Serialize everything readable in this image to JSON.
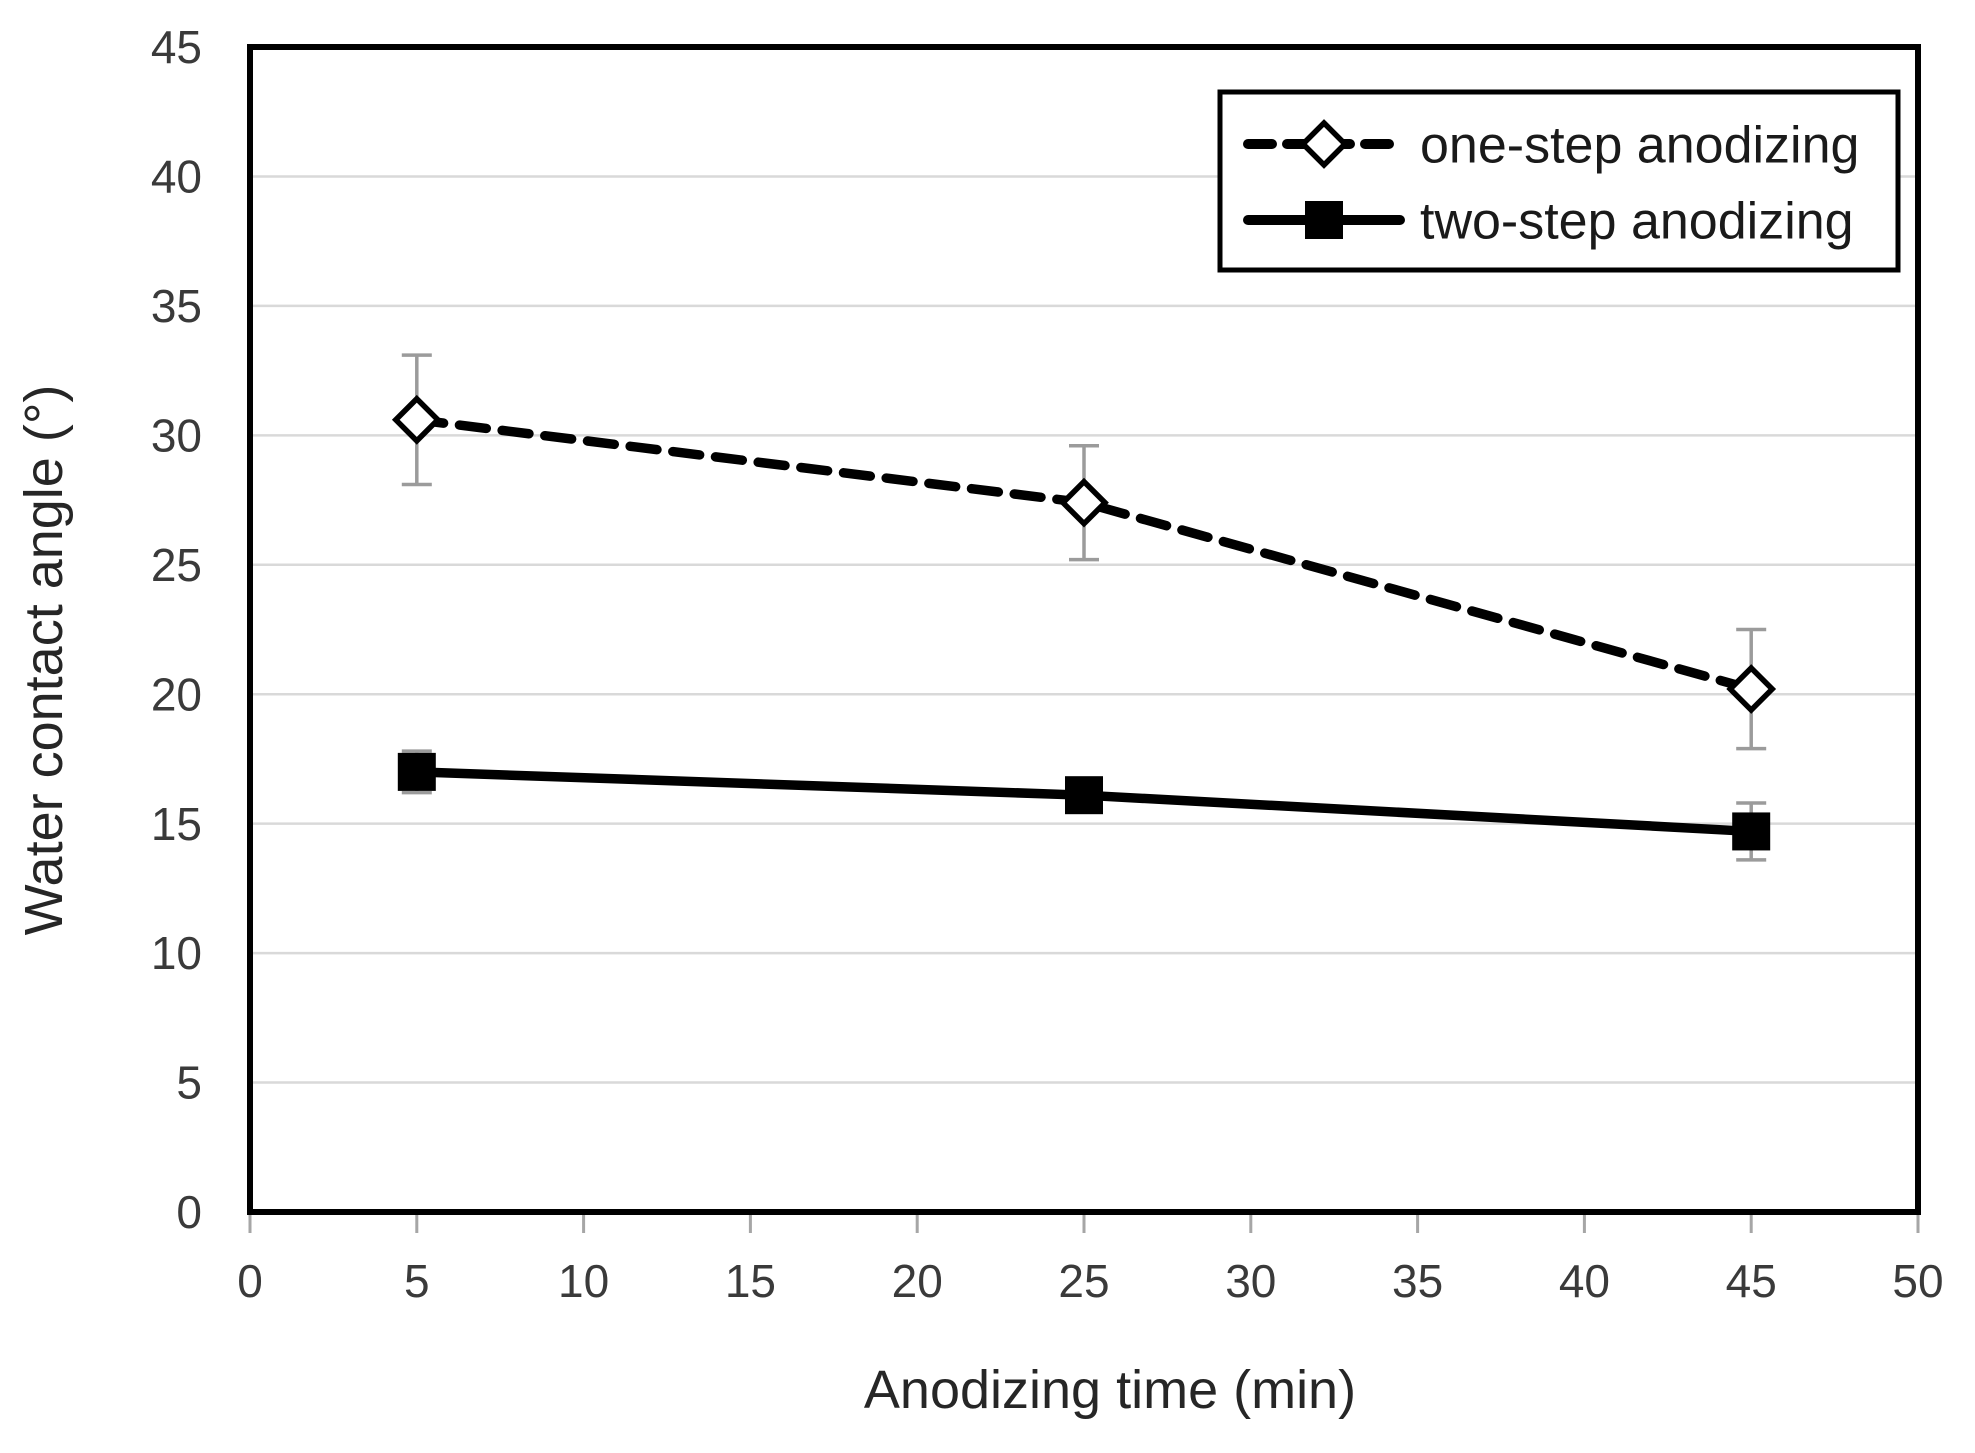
{
  "chart_data": {
    "type": "line",
    "title": "",
    "xlabel": "Anodizing time (min)",
    "ylabel": "Water contact angle (°)",
    "xlim": [
      0,
      50
    ],
    "ylim": [
      0,
      45
    ],
    "x_ticks": [
      0,
      5,
      10,
      15,
      20,
      25,
      30,
      35,
      40,
      45,
      50
    ],
    "y_ticks": [
      0,
      5,
      10,
      15,
      20,
      25,
      30,
      35,
      40,
      45
    ],
    "grid": "horizontal-only",
    "legend_position": "top-right",
    "x": [
      5,
      25,
      45
    ],
    "series": [
      {
        "name": "one-step anodizing",
        "values": [
          30.6,
          27.4,
          20.2
        ],
        "errors": [
          2.5,
          2.2,
          2.3
        ],
        "line_style": "dashed",
        "marker": "open-diamond",
        "color": "#000000"
      },
      {
        "name": "two-step anodizing",
        "values": [
          17.0,
          16.1,
          14.7
        ],
        "errors": [
          0.8,
          0.4,
          1.1
        ],
        "line_style": "solid",
        "marker": "filled-square",
        "color": "#000000"
      }
    ],
    "colors": {
      "plot_border": "#000000",
      "gridline": "#d9d9d9",
      "tick_mark": "#a6a6a6",
      "error_bar": "#9b9b9b",
      "tick_text": "#3a3a3a",
      "title_text": "#262626",
      "legend_text": "#1a1a1a",
      "background": "#ffffff"
    }
  }
}
